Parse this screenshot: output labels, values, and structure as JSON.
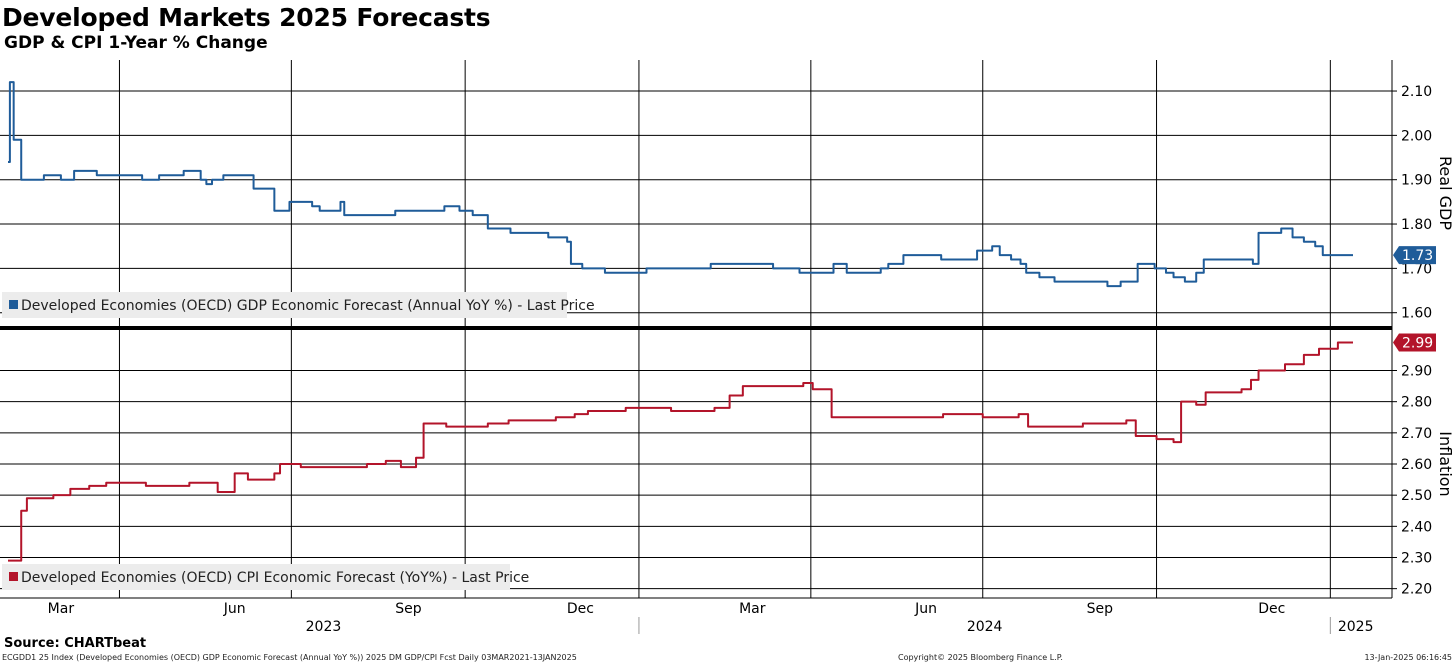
{
  "title": "Developed Markets 2025 Forecasts",
  "subtitle": "GDP & CPI 1-Year % Change",
  "source": "Source: CHARTbeat",
  "footer": {
    "left": "ECGDD1 25 Index (Developed Economies (OECD) GDP Economic Forecast (Annual YoY %)) 2025 DM GDP/CPI Fcst  Daily 03MAR2021-13JAN2025",
    "center": "Copyright© 2025 Bloomberg Finance L.P.",
    "right": "13-Jan-2025 06:16:45"
  },
  "colors": {
    "gdp": "#1f5c99",
    "cpi": "#b3142a",
    "grid": "#000000",
    "legend_bg": "#ececec"
  },
  "chart_data": [
    {
      "type": "line",
      "panel": "top",
      "ylabel": "Real GDP",
      "ylim": [
        1.57,
        2.17
      ],
      "yticks": [
        "2.10",
        "2.00",
        "1.90",
        "1.80",
        "1.70",
        "1.60"
      ],
      "yticks_values": [
        2.1,
        2.0,
        1.9,
        1.8,
        1.7,
        1.6
      ],
      "last_value_label": "1.73",
      "grid": true,
      "legend_placement": "bottom-left",
      "series": [
        {
          "name": "Developed Economies (OECD) GDP Economic Forecast (Annual YoY %) - Last Price",
          "color": "#1f5c99",
          "points": [
            [
              "2023-02-01",
              1.94
            ],
            [
              "2023-02-02",
              2.12
            ],
            [
              "2023-02-04",
              1.99
            ],
            [
              "2023-02-08",
              1.9
            ],
            [
              "2023-02-20",
              1.91
            ],
            [
              "2023-03-01",
              1.9
            ],
            [
              "2023-03-08",
              1.92
            ],
            [
              "2023-03-20",
              1.91
            ],
            [
              "2023-04-10",
              1.91
            ],
            [
              "2023-04-13",
              1.9
            ],
            [
              "2023-04-22",
              1.91
            ],
            [
              "2023-05-05",
              1.92
            ],
            [
              "2023-05-14",
              1.9
            ],
            [
              "2023-05-17",
              1.89
            ],
            [
              "2023-05-20",
              1.9
            ],
            [
              "2023-05-26",
              1.91
            ],
            [
              "2023-06-10",
              1.91
            ],
            [
              "2023-06-11",
              1.88
            ],
            [
              "2023-06-19",
              1.88
            ],
            [
              "2023-06-22",
              1.83
            ],
            [
              "2023-06-30",
              1.85
            ],
            [
              "2023-07-12",
              1.84
            ],
            [
              "2023-07-16",
              1.83
            ],
            [
              "2023-07-25",
              1.83
            ],
            [
              "2023-07-27",
              1.85
            ],
            [
              "2023-07-29",
              1.82
            ],
            [
              "2023-08-25",
              1.83
            ],
            [
              "2023-09-15",
              1.83
            ],
            [
              "2023-09-20",
              1.84
            ],
            [
              "2023-09-28",
              1.83
            ],
            [
              "2023-10-05",
              1.82
            ],
            [
              "2023-10-13",
              1.79
            ],
            [
              "2023-10-25",
              1.78
            ],
            [
              "2023-11-06",
              1.78
            ],
            [
              "2023-11-14",
              1.77
            ],
            [
              "2023-11-24",
              1.76
            ],
            [
              "2023-11-26",
              1.71
            ],
            [
              "2023-11-30",
              1.71
            ],
            [
              "2023-12-02",
              1.7
            ],
            [
              "2023-12-12",
              1.7
            ],
            [
              "2023-12-14",
              1.69
            ],
            [
              "2024-01-05",
              1.7
            ],
            [
              "2024-01-25",
              1.7
            ],
            [
              "2024-02-08",
              1.71
            ],
            [
              "2024-02-25",
              1.71
            ],
            [
              "2024-03-12",
              1.7
            ],
            [
              "2024-03-23",
              1.7
            ],
            [
              "2024-03-26",
              1.69
            ],
            [
              "2024-04-10",
              1.69
            ],
            [
              "2024-04-13",
              1.71
            ],
            [
              "2024-04-20",
              1.69
            ],
            [
              "2024-05-08",
              1.7
            ],
            [
              "2024-05-12",
              1.71
            ],
            [
              "2024-05-20",
              1.73
            ],
            [
              "2024-06-09",
              1.72
            ],
            [
              "2024-06-28",
              1.74
            ],
            [
              "2024-07-06",
              1.75
            ],
            [
              "2024-07-10",
              1.73
            ],
            [
              "2024-07-16",
              1.72
            ],
            [
              "2024-07-21",
              1.71
            ],
            [
              "2024-07-24",
              1.69
            ],
            [
              "2024-07-31",
              1.68
            ],
            [
              "2024-08-08",
              1.67
            ],
            [
              "2024-08-18",
              1.67
            ],
            [
              "2024-08-23",
              1.67
            ],
            [
              "2024-09-05",
              1.66
            ],
            [
              "2024-09-12",
              1.67
            ],
            [
              "2024-09-19",
              1.67
            ],
            [
              "2024-09-21",
              1.71
            ],
            [
              "2024-09-30",
              1.7
            ],
            [
              "2024-10-06",
              1.69
            ],
            [
              "2024-10-10",
              1.68
            ],
            [
              "2024-10-16",
              1.67
            ],
            [
              "2024-10-22",
              1.69
            ],
            [
              "2024-10-26",
              1.72
            ],
            [
              "2024-11-14",
              1.72
            ],
            [
              "2024-11-21",
              1.71
            ],
            [
              "2024-11-24",
              1.78
            ],
            [
              "2024-12-01",
              1.78
            ],
            [
              "2024-12-06",
              1.79
            ],
            [
              "2024-12-12",
              1.77
            ],
            [
              "2024-12-18",
              1.76
            ],
            [
              "2024-12-24",
              1.75
            ],
            [
              "2024-12-28",
              1.73
            ],
            [
              "2025-01-13",
              1.73
            ]
          ]
        }
      ]
    },
    {
      "type": "line",
      "panel": "bottom",
      "ylabel": "Inflation",
      "ylim": [
        2.17,
        3.03
      ],
      "yticks": [
        "2.90",
        "2.80",
        "2.70",
        "2.60",
        "2.50",
        "2.40",
        "2.30",
        "2.20"
      ],
      "yticks_values": [
        2.9,
        2.8,
        2.7,
        2.6,
        2.5,
        2.4,
        2.3,
        2.2
      ],
      "last_value_label": "2.99",
      "grid": true,
      "legend_placement": "bottom-left",
      "series": [
        {
          "name": "Developed Economies (OECD) CPI Economic Forecast (YoY%) - Last Price",
          "color": "#b3142a",
          "points": [
            [
              "2023-02-01",
              2.29
            ],
            [
              "2023-02-05",
              2.29
            ],
            [
              "2023-02-08",
              2.45
            ],
            [
              "2023-02-11",
              2.49
            ],
            [
              "2023-02-25",
              2.5
            ],
            [
              "2023-03-06",
              2.52
            ],
            [
              "2023-03-16",
              2.53
            ],
            [
              "2023-03-25",
              2.54
            ],
            [
              "2023-04-15",
              2.53
            ],
            [
              "2023-05-08",
              2.54
            ],
            [
              "2023-05-20",
              2.54
            ],
            [
              "2023-05-23",
              2.51
            ],
            [
              "2023-05-30",
              2.51
            ],
            [
              "2023-06-01",
              2.57
            ],
            [
              "2023-06-08",
              2.55
            ],
            [
              "2023-06-22",
              2.57
            ],
            [
              "2023-06-25",
              2.6
            ],
            [
              "2023-07-06",
              2.59
            ],
            [
              "2023-07-20",
              2.59
            ],
            [
              "2023-08-10",
              2.6
            ],
            [
              "2023-08-20",
              2.61
            ],
            [
              "2023-08-28",
              2.59
            ],
            [
              "2023-09-05",
              2.62
            ],
            [
              "2023-09-09",
              2.73
            ],
            [
              "2023-09-21",
              2.72
            ],
            [
              "2023-10-13",
              2.73
            ],
            [
              "2023-10-24",
              2.74
            ],
            [
              "2023-11-05",
              2.74
            ],
            [
              "2023-11-18",
              2.75
            ],
            [
              "2023-11-28",
              2.76
            ],
            [
              "2023-12-05",
              2.77
            ],
            [
              "2023-12-25",
              2.78
            ],
            [
              "2024-01-18",
              2.77
            ],
            [
              "2024-02-10",
              2.78
            ],
            [
              "2024-02-18",
              2.82
            ],
            [
              "2024-02-25",
              2.85
            ],
            [
              "2024-03-15",
              2.85
            ],
            [
              "2024-03-28",
              2.86
            ],
            [
              "2024-04-02",
              2.84
            ],
            [
              "2024-04-10",
              2.84
            ],
            [
              "2024-04-12",
              2.75
            ],
            [
              "2024-05-15",
              2.75
            ],
            [
              "2024-06-10",
              2.76
            ],
            [
              "2024-07-01",
              2.75
            ],
            [
              "2024-07-20",
              2.76
            ],
            [
              "2024-07-25",
              2.72
            ],
            [
              "2024-08-23",
              2.73
            ],
            [
              "2024-09-15",
              2.74
            ],
            [
              "2024-09-20",
              2.69
            ],
            [
              "2024-10-01",
              2.68
            ],
            [
              "2024-10-10",
              2.67
            ],
            [
              "2024-10-14",
              2.8
            ],
            [
              "2024-10-22",
              2.79
            ],
            [
              "2024-10-27",
              2.83
            ],
            [
              "2024-11-15",
              2.84
            ],
            [
              "2024-11-20",
              2.87
            ],
            [
              "2024-11-24",
              2.9
            ],
            [
              "2024-12-08",
              2.92
            ],
            [
              "2024-12-18",
              2.95
            ],
            [
              "2024-12-26",
              2.97
            ],
            [
              "2025-01-05",
              2.99
            ],
            [
              "2025-01-13",
              2.99
            ]
          ]
        }
      ]
    }
  ],
  "x_axis": {
    "type": "date",
    "xlim": [
      "2023-02-01",
      "2025-01-13"
    ],
    "months": [
      {
        "label": "Mar",
        "date": "2023-03-01"
      },
      {
        "label": "Jun",
        "date": "2023-06-01"
      },
      {
        "label": "Sep",
        "date": "2023-09-01"
      },
      {
        "label": "Dec",
        "date": "2023-12-01"
      },
      {
        "label": "Mar",
        "date": "2024-03-01"
      },
      {
        "label": "Jun",
        "date": "2024-06-01"
      },
      {
        "label": "Sep",
        "date": "2024-09-01"
      },
      {
        "label": "Dec",
        "date": "2024-12-01"
      }
    ],
    "gridlines": [
      "2023-04-01",
      "2023-07-01",
      "2023-10-01",
      "2024-01-01",
      "2024-04-01",
      "2024-07-01",
      "2024-10-01",
      "2025-01-01"
    ],
    "years": [
      {
        "label": "2023",
        "from": "2023-02-01",
        "to": "2024-01-01"
      },
      {
        "label": "2024",
        "from": "2024-01-01",
        "to": "2025-01-01"
      },
      {
        "label": "2025",
        "from": "2025-01-01",
        "to": "2025-01-13"
      }
    ]
  }
}
